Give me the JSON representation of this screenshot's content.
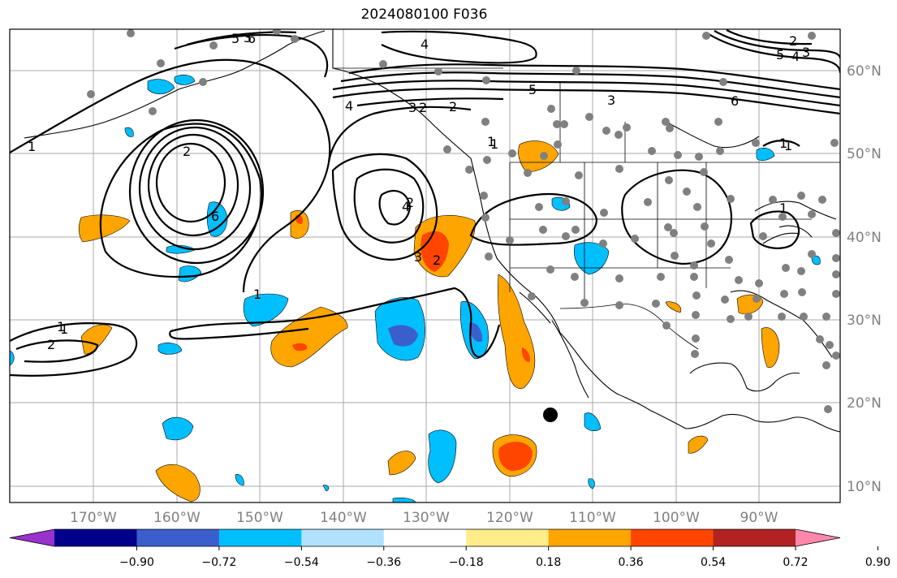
{
  "title": "2024080100 F036",
  "lon_labels": [
    "170°W",
    "160°W",
    "150°W",
    "140°W",
    "130°W",
    "120°W",
    "110°W",
    "100°W",
    "90°W"
  ],
  "lat_labels": [
    "60°N",
    "50°N",
    "40°N",
    "30°N",
    "20°N",
    "10°N"
  ],
  "colorbar": {
    "colors": [
      "#9932cc",
      "#00008b",
      "#3a5fcd",
      "#00bfff",
      "#b0e2ff",
      "#ffffff",
      "#ffec8b",
      "#ffa500",
      "#ff4500",
      "#b22222",
      "#ff88aa"
    ],
    "tick_labels": [
      "−0.90",
      "−0.72",
      "−0.54",
      "−0.36",
      "−0.18",
      "0.18",
      "0.36",
      "0.54",
      "0.72",
      "0.90"
    ]
  },
  "contour_labels": [
    "6",
    "5",
    "4",
    "3",
    "2",
    "1",
    "4",
    "3",
    "2",
    "1",
    "5",
    "4",
    "3",
    "2",
    "1",
    "2",
    "1",
    "5",
    "3",
    "2",
    "1",
    "6",
    "6",
    "4",
    "3",
    "2",
    "1",
    "1",
    "2",
    "1",
    "1"
  ]
}
